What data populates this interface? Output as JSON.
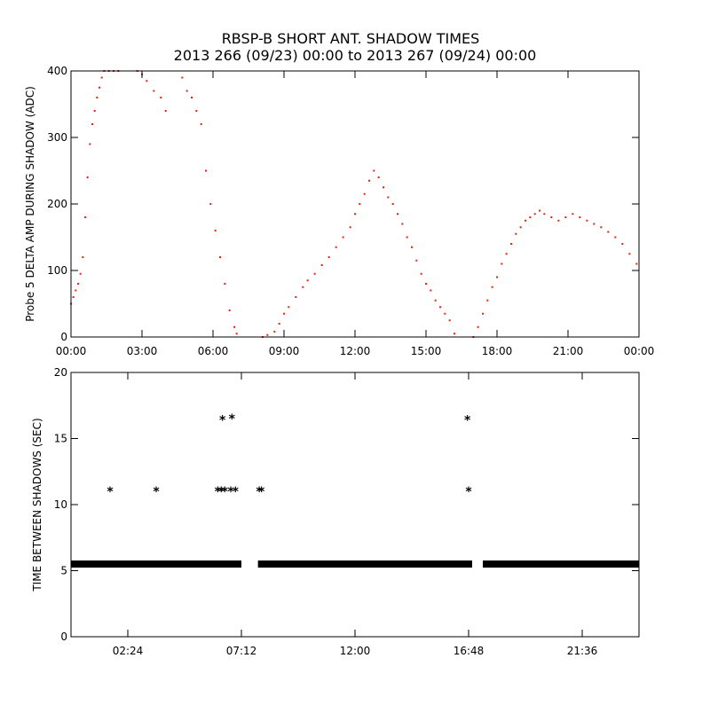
{
  "title_line1": "RBSP-B SHORT ANT. SHADOW TIMES",
  "title_line2": "2013 266 (09/23) 00:00 to 2013 267 (09/24) 00:00",
  "chart_data": [
    {
      "type": "scatter",
      "ylabel": "Probe 5 DELTA AMP DURING SHADOW (ADC)",
      "xlabel": "",
      "x_unit": "hours",
      "xlim": [
        0,
        24
      ],
      "ylim": [
        0,
        400
      ],
      "x_ticks": [
        0,
        3,
        6,
        9,
        12,
        15,
        18,
        21,
        24
      ],
      "x_tick_labels": [
        "00:00",
        "03:00",
        "06:00",
        "09:00",
        "12:00",
        "15:00",
        "18:00",
        "21:00",
        "00:00"
      ],
      "y_ticks": [
        0,
        100,
        200,
        300,
        400
      ],
      "y_tick_labels": [
        "0",
        "100",
        "200",
        "300",
        "400"
      ],
      "color": "#e8200c",
      "series": [
        {
          "points": [
            [
              0.0,
              50
            ],
            [
              0.1,
              60
            ],
            [
              0.2,
              70
            ],
            [
              0.3,
              80
            ],
            [
              0.4,
              95
            ],
            [
              0.5,
              120
            ],
            [
              0.6,
              180
            ],
            [
              0.7,
              240
            ],
            [
              0.8,
              290
            ],
            [
              0.9,
              320
            ],
            [
              1.0,
              340
            ],
            [
              1.1,
              360
            ],
            [
              1.2,
              375
            ],
            [
              1.3,
              390
            ],
            [
              1.4,
              400
            ],
            [
              1.6,
              400
            ],
            [
              1.8,
              400
            ],
            [
              2.0,
              400
            ],
            [
              2.8,
              400
            ],
            [
              3.0,
              395
            ],
            [
              3.2,
              385
            ],
            [
              3.5,
              370
            ],
            [
              3.8,
              360
            ],
            [
              4.0,
              340
            ],
            [
              4.7,
              390
            ],
            [
              4.9,
              370
            ],
            [
              5.1,
              360
            ],
            [
              5.3,
              340
            ],
            [
              5.5,
              320
            ],
            [
              5.7,
              250
            ],
            [
              5.9,
              200
            ],
            [
              6.1,
              160
            ],
            [
              6.3,
              120
            ],
            [
              6.5,
              80
            ],
            [
              6.7,
              40
            ],
            [
              6.9,
              15
            ],
            [
              7.0,
              5
            ],
            [
              8.1,
              0
            ],
            [
              8.3,
              3
            ],
            [
              8.6,
              8
            ],
            [
              8.8,
              20
            ],
            [
              9.0,
              35
            ],
            [
              9.2,
              45
            ],
            [
              9.5,
              60
            ],
            [
              9.8,
              75
            ],
            [
              10.0,
              85
            ],
            [
              10.3,
              95
            ],
            [
              10.6,
              108
            ],
            [
              10.9,
              120
            ],
            [
              11.2,
              135
            ],
            [
              11.5,
              150
            ],
            [
              11.8,
              165
            ],
            [
              12.0,
              185
            ],
            [
              12.2,
              200
            ],
            [
              12.4,
              215
            ],
            [
              12.6,
              235
            ],
            [
              12.8,
              250
            ],
            [
              13.0,
              240
            ],
            [
              13.2,
              225
            ],
            [
              13.4,
              210
            ],
            [
              13.6,
              200
            ],
            [
              13.8,
              185
            ],
            [
              14.0,
              170
            ],
            [
              14.2,
              150
            ],
            [
              14.4,
              135
            ],
            [
              14.6,
              115
            ],
            [
              14.8,
              95
            ],
            [
              15.0,
              80
            ],
            [
              15.2,
              70
            ],
            [
              15.4,
              55
            ],
            [
              15.6,
              45
            ],
            [
              15.8,
              35
            ],
            [
              16.0,
              25
            ],
            [
              16.2,
              5
            ],
            [
              17.0,
              0
            ],
            [
              17.2,
              15
            ],
            [
              17.4,
              35
            ],
            [
              17.6,
              55
            ],
            [
              17.8,
              75
            ],
            [
              18.0,
              90
            ],
            [
              18.2,
              110
            ],
            [
              18.4,
              125
            ],
            [
              18.6,
              140
            ],
            [
              18.8,
              155
            ],
            [
              19.0,
              165
            ],
            [
              19.2,
              175
            ],
            [
              19.4,
              180
            ],
            [
              19.6,
              185
            ],
            [
              19.8,
              190
            ],
            [
              20.0,
              185
            ],
            [
              20.3,
              180
            ],
            [
              20.6,
              175
            ],
            [
              20.9,
              180
            ],
            [
              21.2,
              185
            ],
            [
              21.5,
              180
            ],
            [
              21.8,
              175
            ],
            [
              22.1,
              170
            ],
            [
              22.4,
              165
            ],
            [
              22.7,
              158
            ],
            [
              23.0,
              150
            ],
            [
              23.3,
              140
            ],
            [
              23.6,
              125
            ],
            [
              23.9,
              110
            ]
          ]
        }
      ]
    },
    {
      "type": "scatter",
      "ylabel": "TIME BETWEEN SHADOWS (SEC)",
      "xlabel": "",
      "x_unit": "hours",
      "xlim": [
        0,
        24
      ],
      "ylim": [
        0,
        20
      ],
      "x_ticks": [
        2.4,
        7.2,
        12.0,
        16.8,
        21.6
      ],
      "x_tick_labels": [
        "02:24",
        "07:12",
        "12:00",
        "16:48",
        "21:36"
      ],
      "y_ticks": [
        0,
        5,
        10,
        15,
        20
      ],
      "y_tick_labels": [
        "0",
        "5",
        "10",
        "15",
        "20"
      ],
      "marker": "asterisk",
      "color": "#000000",
      "baseline_value": 5.5,
      "baseline_segments": [
        [
          0.0,
          7.2
        ],
        [
          7.9,
          16.95
        ],
        [
          17.4,
          24.0
        ]
      ],
      "outliers": [
        [
          1.65,
          11.0
        ],
        [
          3.6,
          11.0
        ],
        [
          6.2,
          11.0
        ],
        [
          6.35,
          11.0
        ],
        [
          6.5,
          11.0
        ],
        [
          6.4,
          16.4
        ],
        [
          6.8,
          16.5
        ],
        [
          6.95,
          11.0
        ],
        [
          6.75,
          11.0
        ],
        [
          7.95,
          11.0
        ],
        [
          8.05,
          11.0
        ],
        [
          16.75,
          16.4
        ],
        [
          16.8,
          11.0
        ]
      ]
    }
  ]
}
